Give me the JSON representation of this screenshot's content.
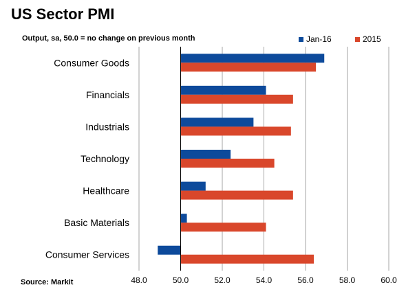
{
  "chart_data": {
    "type": "bar",
    "orientation": "horizontal",
    "title": "US Sector PMI",
    "subtitle": "Output, sa, 50.0 = no change on previous month",
    "source": "Source: Markit",
    "categories": [
      "Consumer Goods",
      "Financials",
      "Industrials",
      "Technology",
      "Healthcare",
      "Basic Materials",
      "Consumer Services"
    ],
    "series": [
      {
        "name": "Jan-16",
        "color": "#0D4A9B",
        "values": [
          56.9,
          54.1,
          53.5,
          52.4,
          51.2,
          50.3,
          48.9
        ]
      },
      {
        "name": "2015",
        "color": "#D9472B",
        "values": [
          56.5,
          55.4,
          55.3,
          54.5,
          55.4,
          54.1,
          56.4
        ]
      }
    ],
    "xlim": [
      48.0,
      60.0
    ],
    "xticks": [
      "48.0",
      "50.0",
      "52.0",
      "54.0",
      "56.0",
      "58.0",
      "60.0"
    ],
    "baseline": 50.0,
    "grid": "vertical",
    "legend_position": "top-right"
  }
}
